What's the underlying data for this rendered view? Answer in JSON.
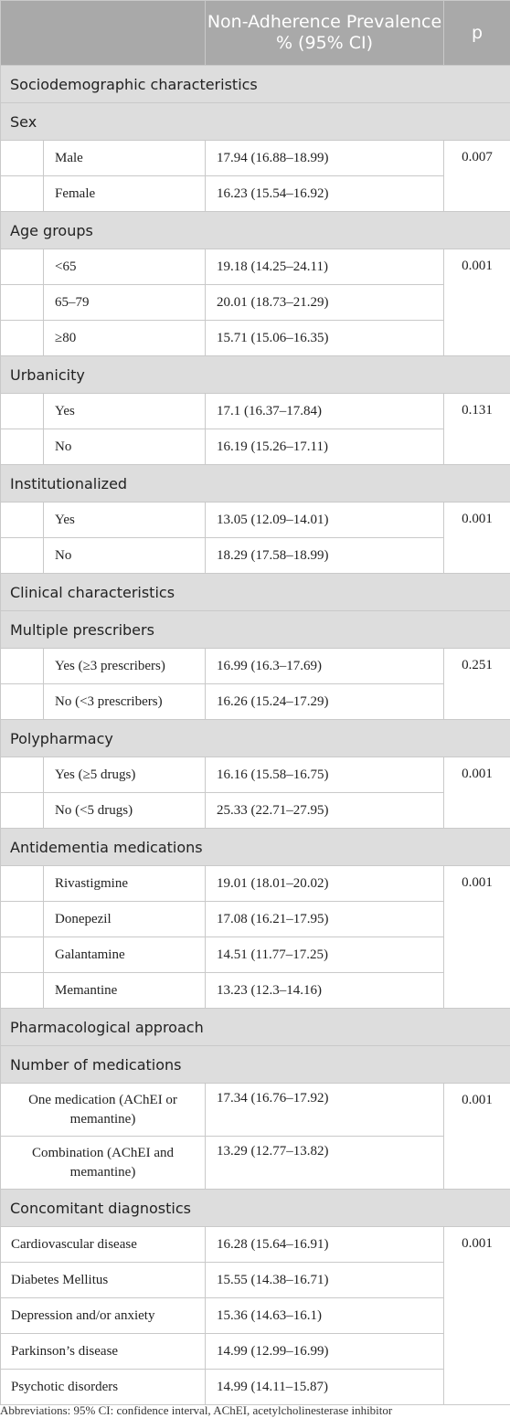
{
  "header": {
    "col_prevalence": "Non-Adherence Prevalence % (95% CI)",
    "col_p": "p"
  },
  "sections": {
    "sociodemographic": "Sociodemographic characteristics",
    "clinical": "Clinical characteristics",
    "pharmacological": "Pharmacological approach",
    "concomitant": "Concomitant diagnostics"
  },
  "sex": {
    "title": "Sex",
    "p": "0.007",
    "rows": [
      {
        "label": "Male",
        "value": "17.94 (16.88–18.99)"
      },
      {
        "label": "Female",
        "value": "16.23 (15.54–16.92)"
      }
    ]
  },
  "age": {
    "title": "Age groups",
    "p": "0.001",
    "rows": [
      {
        "label": "<65",
        "value": "19.18 (14.25–24.11)"
      },
      {
        "label": "65–79",
        "value": "20.01 (18.73–21.29)"
      },
      {
        "label": "≥80",
        "value": "15.71 (15.06–16.35)"
      }
    ]
  },
  "urbanicity": {
    "title": "Urbanicity",
    "p": "0.131",
    "rows": [
      {
        "label": "Yes",
        "value": "17.1 (16.37–17.84)"
      },
      {
        "label": "No",
        "value": "16.19 (15.26–17.11)"
      }
    ]
  },
  "institutionalized": {
    "title": "Institutionalized",
    "p": "0.001",
    "rows": [
      {
        "label": "Yes",
        "value": "13.05 (12.09–14.01)"
      },
      {
        "label": "No",
        "value": "18.29 (17.58–18.99)"
      }
    ]
  },
  "prescribers": {
    "title": "Multiple prescribers",
    "p": "0.251",
    "rows": [
      {
        "label": "Yes (≥3 prescribers)",
        "value": "16.99 (16.3–17.69)"
      },
      {
        "label": "No (<3 prescribers)",
        "value": "16.26 (15.24–17.29)"
      }
    ]
  },
  "polypharmacy": {
    "title": "Polypharmacy",
    "p": "0.001",
    "rows": [
      {
        "label": "Yes (≥5 drugs)",
        "value": "16.16 (15.58–16.75)"
      },
      {
        "label": "No (<5 drugs)",
        "value": "25.33 (22.71–27.95)"
      }
    ]
  },
  "antidementia": {
    "title": "Antidementia medications",
    "p": "0.001",
    "rows": [
      {
        "label": "Rivastigmine",
        "value": "19.01 (18.01–20.02)"
      },
      {
        "label": "Donepezil",
        "value": "17.08 (16.21–17.95)"
      },
      {
        "label": "Galantamine",
        "value": "14.51 (11.77–17.25)"
      },
      {
        "label": "Memantine",
        "value": "13.23 (12.3–14.16)"
      }
    ]
  },
  "num_medications": {
    "title": "Number of medications",
    "p": "0.001",
    "rows": [
      {
        "label_line1": "One medication (AChEI or",
        "label_line2": "memantine)",
        "value": "17.34 (16.76–17.92)"
      },
      {
        "label_line1": "Combination (AChEI and",
        "label_line2": "memantine)",
        "value": "13.29 (12.77–13.82)"
      }
    ]
  },
  "diagnostics": {
    "p": "0.001",
    "rows": [
      {
        "label": "Cardiovascular disease",
        "value": "16.28 (15.64–16.91)"
      },
      {
        "label": "Diabetes Mellitus",
        "value": "15.55 (14.38–16.71)"
      },
      {
        "label": "Depression and/or anxiety",
        "value": "15.36 (14.63–16.1)"
      },
      {
        "label": "Parkinson’s disease",
        "value": "14.99 (12.99–16.99)"
      },
      {
        "label": "Psychotic disorders",
        "value": "14.99 (14.11–15.87)"
      }
    ]
  },
  "footnote": "Abbreviations: 95% CI: confidence interval, AChEI, acetylcholinesterase inhibitor"
}
